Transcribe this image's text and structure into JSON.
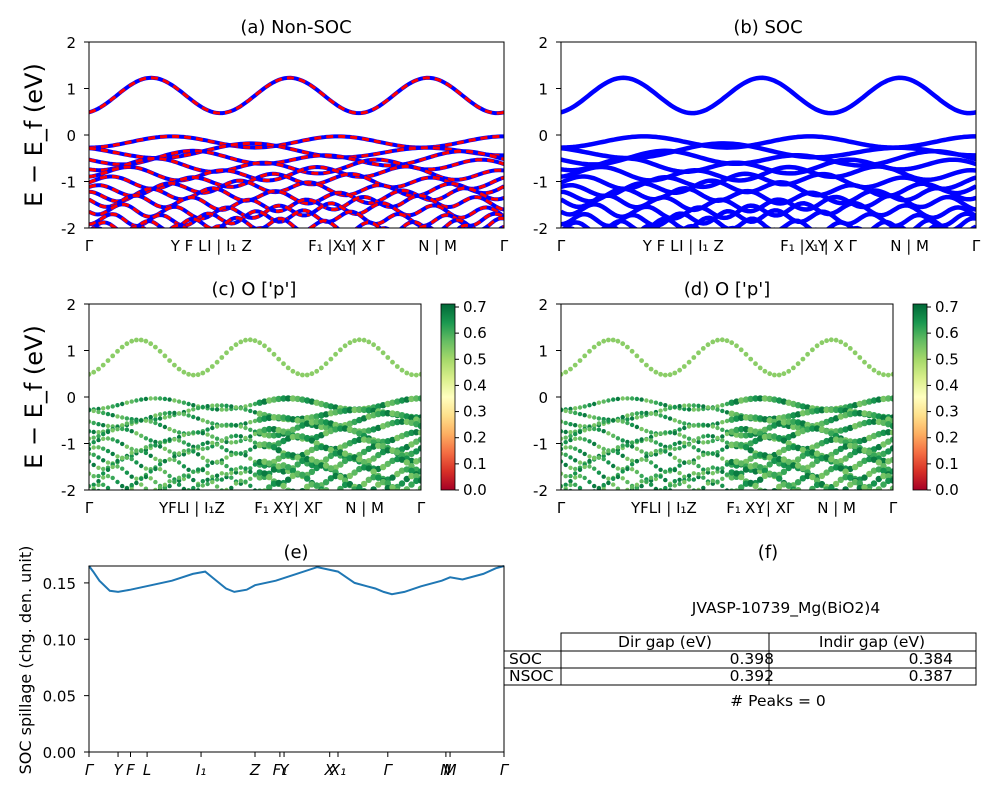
{
  "chart_data": [
    {
      "id": "a",
      "type": "line",
      "title": "(a) Non-SOC",
      "ylabel": "E − E_f (eV)",
      "ylim": [
        -2,
        2
      ],
      "yticks": [
        2,
        1,
        0,
        -1,
        -2
      ],
      "path_labels": [
        "Γ",
        "Y F L",
        "I | I₁",
        "Z",
        "F₁ |X",
        "Y",
        "₁ | X Γ",
        "N | M",
        "Γ"
      ],
      "series": [
        {
          "color": "#0000ff",
          "style": "solid"
        },
        {
          "color": "#ff0000",
          "style": "dashed"
        }
      ]
    },
    {
      "id": "b",
      "type": "line",
      "title": "(b) SOC",
      "ylim": [
        -2,
        2
      ],
      "yticks": [
        2,
        1,
        0,
        -1,
        -2
      ],
      "path_labels": [
        "Γ",
        "Y F L",
        "I | I₁",
        "Z",
        "F₁ |X",
        "Y",
        "₁ | X Γ",
        "N | M",
        "Γ"
      ],
      "series": [
        {
          "color": "#0000ff",
          "style": "solid"
        }
      ]
    },
    {
      "id": "c",
      "type": "scatter",
      "title": "(c)  O ['p']",
      "ylabel": "E − E_f (eV)",
      "ylim": [
        -2,
        2
      ],
      "yticks": [
        2,
        1,
        0,
        -1,
        -2
      ],
      "path_labels": [
        "Γ",
        "YFLI | I₁Z",
        "F₁",
        "X",
        "Y",
        "₁",
        "| XΓ",
        "N | M",
        "Γ"
      ],
      "colorbar": {
        "min": 0.0,
        "max": 0.7,
        "ticks": [
          "0.7",
          "0.6",
          "0.5",
          "0.4",
          "0.3",
          "0.2",
          "0.1",
          "0.0"
        ],
        "colormap": "RdYlGn"
      }
    },
    {
      "id": "d",
      "type": "scatter",
      "title": "(d) O ['p']",
      "ylim": [
        -2,
        2
      ],
      "yticks": [
        2,
        1,
        0,
        -1,
        -2
      ],
      "path_labels": [
        "Γ",
        "YFLI | I₁Z",
        "F₁",
        "X",
        "Y",
        "₁",
        "| XΓ",
        "N | M",
        "Γ"
      ],
      "colorbar": {
        "min": 0.0,
        "max": 0.7,
        "ticks": [
          "0.7",
          "0.6",
          "0.5",
          "0.4",
          "0.3",
          "0.2",
          "0.1",
          "0.0"
        ],
        "colormap": "RdYlGn"
      }
    },
    {
      "id": "e",
      "type": "line",
      "title": "(e)",
      "ylabel": "SOC spillage (chg. den. unit)",
      "ylim": [
        0,
        0.165
      ],
      "yticks": [
        "0.15",
        "0.10",
        "0.05",
        "0.00"
      ],
      "ytick_values": [
        0.15,
        0.1,
        0.05,
        0.0
      ],
      "xlabels": [
        "Γ",
        "Y",
        "F",
        "L",
        "I₁",
        "Z",
        "F₁",
        "Y",
        "X",
        "X₁",
        "Γ",
        "N",
        "M",
        "Γ"
      ],
      "x": [
        0,
        0.01,
        0.025,
        0.05,
        0.07,
        0.1,
        0.15,
        0.2,
        0.25,
        0.28,
        0.3,
        0.33,
        0.35,
        0.38,
        0.4,
        0.45,
        0.5,
        0.55,
        0.6,
        0.64,
        0.67,
        0.69,
        0.71,
        0.73,
        0.76,
        0.8,
        0.85,
        0.87,
        0.9,
        0.95,
        0.98,
        1.0
      ],
      "y": [
        0.165,
        0.16,
        0.152,
        0.143,
        0.142,
        0.144,
        0.148,
        0.152,
        0.158,
        0.16,
        0.154,
        0.145,
        0.142,
        0.144,
        0.148,
        0.152,
        0.158,
        0.164,
        0.16,
        0.15,
        0.147,
        0.145,
        0.142,
        0.14,
        0.142,
        0.147,
        0.152,
        0.155,
        0.153,
        0.158,
        0.163,
        0.165
      ],
      "color": "#1f77b4"
    }
  ],
  "panel_f": {
    "title": "(f)",
    "subtitle": "JVASP-10739_Mg(BiO2)4",
    "table": {
      "headers": [
        "Dir gap (eV)",
        "Indir gap (eV)"
      ],
      "rows": [
        {
          "label": "SOC",
          "dir": "0.398",
          "indir": "0.384"
        },
        {
          "label": "NSOC",
          "dir": "0.392",
          "indir": "0.387"
        }
      ]
    },
    "peaks": "# Peaks = 0"
  }
}
